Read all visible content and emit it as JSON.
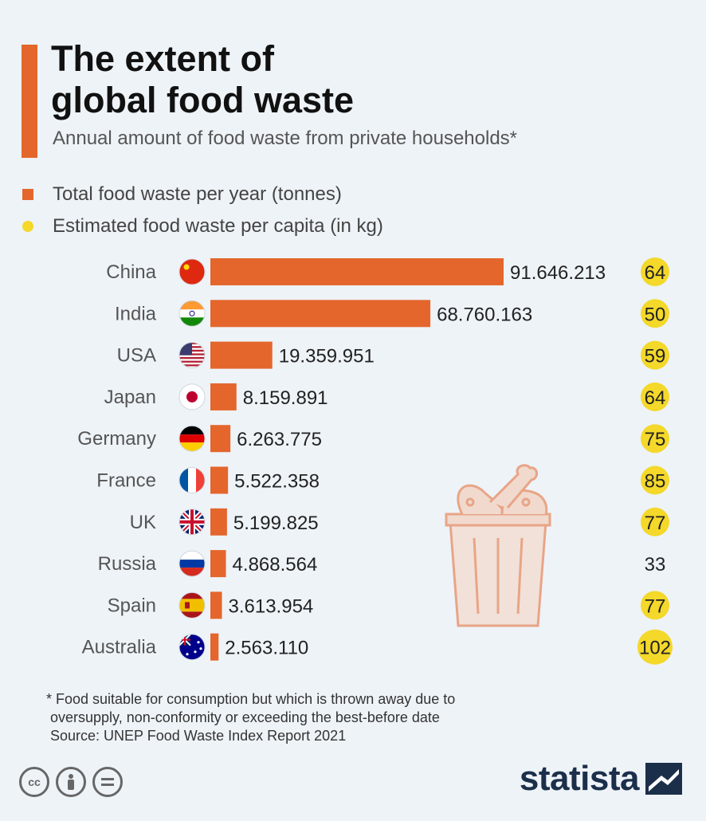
{
  "header": {
    "title_line1": "The extent of",
    "title_line2": "global food waste",
    "subtitle": "Annual amount of food waste from private households*"
  },
  "legend": {
    "total": "Total food waste per year (tonnes)",
    "capita": "Estimated food waste per capita (in kg)"
  },
  "colors": {
    "bar": "#e4662c",
    "capita": "#f4d82a",
    "accent": "#e4662c",
    "brand": "#1b2f4a"
  },
  "chart_data": {
    "type": "bar",
    "orientation": "horizontal",
    "categories": [
      "China",
      "India",
      "USA",
      "Japan",
      "Germany",
      "France",
      "UK",
      "Russia",
      "Spain",
      "Australia"
    ],
    "series": [
      {
        "name": "Total food waste per year (tonnes)",
        "values": [
          91646213,
          68760163,
          19359951,
          8159891,
          6263775,
          5522358,
          5199825,
          4868564,
          3613954,
          2563110
        ],
        "labels": [
          "91.646.213",
          "68.760.163",
          "19.359.951",
          "8.159.891",
          "6.263.775",
          "5.522.358",
          "5.199.825",
          "4.868.564",
          "3.613.954",
          "2.563.110"
        ]
      },
      {
        "name": "Estimated food waste per capita (in kg)",
        "values": [
          64,
          50,
          59,
          64,
          75,
          85,
          77,
          33,
          77,
          102
        ]
      }
    ],
    "flags": [
      "china-flag",
      "india-flag",
      "usa-flag",
      "japan-flag",
      "germany-flag",
      "france-flag",
      "uk-flag",
      "russia-flag",
      "spain-flag",
      "australia-flag"
    ]
  },
  "footnote": {
    "line1": "* Food suitable for consumption but which is thrown away due to",
    "line2": " oversupply, non-conformity or exceeding the best-before date",
    "line3": " Source: UNEP Food Waste Index Report 2021"
  },
  "license_icons": [
    "cc-icon",
    "by-icon",
    "nd-icon"
  ],
  "brand": {
    "name": "statista"
  }
}
